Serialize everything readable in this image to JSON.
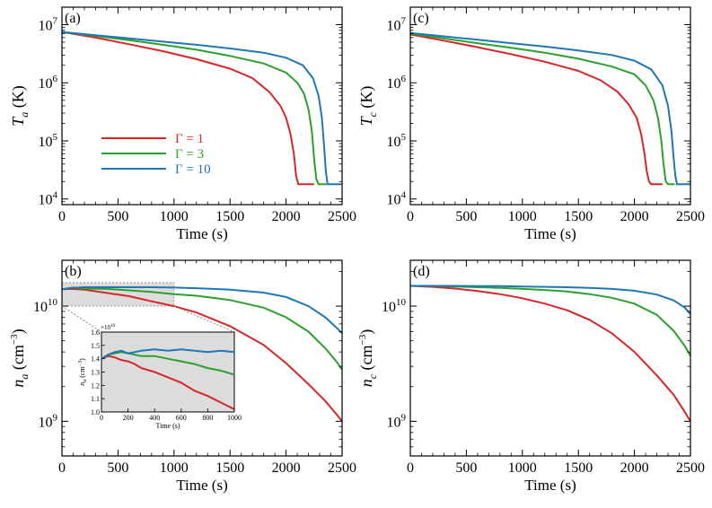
{
  "colors": {
    "gamma1": "#d62728",
    "gamma3": "#2ca02c",
    "gamma10": "#1f77b4",
    "axis": "#000000",
    "inset_bg": "#dcdcdc"
  },
  "legend": [
    {
      "label": "Γ = 1",
      "color": "#d62728"
    },
    {
      "label": "Γ = 3",
      "color": "#2ca02c"
    },
    {
      "label": "Γ = 10",
      "color": "#1f77b4"
    }
  ],
  "chart_data": [
    {
      "id": "a",
      "type": "line",
      "panel_label": "(a)",
      "xlabel": "Time (s)",
      "ylabel": {
        "main": "T",
        "sub": "a",
        "unit": " (K)"
      },
      "xlim": [
        0,
        2500
      ],
      "ylim": [
        8000,
        20000000
      ],
      "yscale": "log",
      "x_ticks": [
        "0",
        "500",
        "1000",
        "1500",
        "2000",
        "2500"
      ],
      "y_ticks": [
        {
          "v": 10000,
          "m": "10",
          "e": "4"
        },
        {
          "v": 100000,
          "m": "10",
          "e": "5"
        },
        {
          "v": 1000000,
          "m": "10",
          "e": "6"
        },
        {
          "v": 10000000,
          "m": "10",
          "e": "7"
        }
      ],
      "series": [
        {
          "name": "Γ = 1",
          "color": "#d62728",
          "x": [
            0,
            300,
            600,
            900,
            1200,
            1500,
            1700,
            1850,
            1950,
            2000,
            2040,
            2070,
            2090,
            2110,
            2140,
            2250
          ],
          "y": [
            7500000,
            6000000,
            4600000,
            3500000,
            2550000,
            1750000,
            1200000,
            700000,
            400000,
            250000,
            130000,
            60000,
            25000,
            18000,
            18000,
            18000
          ]
        },
        {
          "name": "Γ = 3",
          "color": "#2ca02c",
          "x": [
            0,
            300,
            600,
            900,
            1200,
            1500,
            1800,
            2000,
            2100,
            2160,
            2200,
            2230,
            2250,
            2270,
            2290,
            2360
          ],
          "y": [
            7500000,
            6400000,
            5400000,
            4500000,
            3700000,
            2900000,
            2150000,
            1500000,
            1000000,
            650000,
            350000,
            150000,
            50000,
            22000,
            18000,
            18000
          ]
        },
        {
          "name": "Γ = 10",
          "color": "#1f77b4",
          "x": [
            0,
            300,
            600,
            900,
            1200,
            1500,
            1800,
            2000,
            2150,
            2240,
            2290,
            2320,
            2340,
            2355,
            2370,
            2500
          ],
          "y": [
            7500000,
            6600000,
            5800000,
            5100000,
            4500000,
            3900000,
            3300000,
            2700000,
            2000000,
            1200000,
            600000,
            250000,
            80000,
            30000,
            18000,
            18000
          ]
        }
      ]
    },
    {
      "id": "c",
      "type": "line",
      "panel_label": "(c)",
      "xlabel": "Time (s)",
      "ylabel": {
        "main": "T",
        "sub": "c",
        "unit": " (K)"
      },
      "xlim": [
        0,
        2500
      ],
      "ylim": [
        8000,
        20000000
      ],
      "yscale": "log",
      "x_ticks": [
        "0",
        "500",
        "1000",
        "1500",
        "2000",
        "2500"
      ],
      "y_ticks": [
        {
          "v": 10000,
          "m": "10",
          "e": "4"
        },
        {
          "v": 100000,
          "m": "10",
          "e": "5"
        },
        {
          "v": 1000000,
          "m": "10",
          "e": "6"
        },
        {
          "v": 10000000,
          "m": "10",
          "e": "7"
        }
      ],
      "series": [
        {
          "name": "Γ = 1",
          "color": "#d62728",
          "x": [
            0,
            300,
            600,
            900,
            1200,
            1500,
            1700,
            1850,
            1950,
            2020,
            2060,
            2090,
            2110,
            2130,
            2150,
            2250
          ],
          "y": [
            6800000,
            5300000,
            4100000,
            3100000,
            2300000,
            1600000,
            1100000,
            700000,
            420000,
            250000,
            130000,
            60000,
            30000,
            20000,
            18000,
            18000
          ]
        },
        {
          "name": "Γ = 3",
          "color": "#2ca02c",
          "x": [
            0,
            300,
            600,
            900,
            1200,
            1500,
            1800,
            2000,
            2100,
            2170,
            2210,
            2240,
            2260,
            2280,
            2300,
            2360
          ],
          "y": [
            7000000,
            5800000,
            4800000,
            4000000,
            3300000,
            2600000,
            1900000,
            1400000,
            900000,
            500000,
            250000,
            100000,
            40000,
            20000,
            18000,
            18000
          ]
        },
        {
          "name": "Γ = 10",
          "color": "#1f77b4",
          "x": [
            0,
            300,
            600,
            900,
            1200,
            1500,
            1800,
            2000,
            2150,
            2250,
            2300,
            2330,
            2350,
            2365,
            2380,
            2500
          ],
          "y": [
            7200000,
            6300000,
            5500000,
            4800000,
            4200000,
            3600000,
            3000000,
            2400000,
            1700000,
            900000,
            400000,
            150000,
            50000,
            25000,
            18000,
            18000
          ]
        }
      ]
    },
    {
      "id": "b",
      "type": "line",
      "panel_label": "(b)",
      "xlabel": "Time (s)",
      "ylabel": {
        "main": "n",
        "sub": "a",
        "unit": " (cm",
        "unit_exp": "−3",
        "unit_end": ")"
      },
      "xlim": [
        0,
        2500
      ],
      "ylim": [
        500000000,
        25000000000
      ],
      "yscale": "log",
      "x_ticks": [
        "0",
        "500",
        "1000",
        "1500",
        "2000",
        "2500"
      ],
      "y_ticks": [
        {
          "v": 1000000000,
          "m": "10",
          "e": "9"
        },
        {
          "v": 10000000000,
          "m": "10",
          "e": "10"
        }
      ],
      "series": [
        {
          "name": "Γ = 1",
          "color": "#d62728",
          "x": [
            0,
            100,
            200,
            400,
            600,
            800,
            1000,
            1200,
            1500,
            1800,
            2000,
            2200,
            2350,
            2450,
            2500
          ],
          "y": [
            14000000000,
            14100000000,
            13900000000,
            13000000000,
            12200000000,
            11000000000,
            10000000000,
            8800000000,
            6700000000,
            4600000000,
            3200000000,
            2100000000,
            1500000000,
            1150000000,
            1000000000
          ]
        },
        {
          "name": "Γ = 3",
          "color": "#2ca02c",
          "x": [
            0,
            100,
            200,
            400,
            600,
            800,
            1000,
            1200,
            1500,
            1800,
            2000,
            2200,
            2350,
            2450,
            2500
          ],
          "y": [
            14000000000,
            14500000000,
            14200000000,
            14100000000,
            13700000000,
            13300000000,
            12700000000,
            12300000000,
            11300000000,
            9700000000,
            8000000000,
            6000000000,
            4300000000,
            3300000000,
            2800000000
          ]
        },
        {
          "name": "Γ = 10",
          "color": "#1f77b4",
          "x": [
            0,
            100,
            200,
            400,
            600,
            800,
            1000,
            1200,
            1500,
            1800,
            2000,
            2200,
            2350,
            2450,
            2500
          ],
          "y": [
            14000000000,
            14400000000,
            14600000000,
            14600000000,
            14600000000,
            14600000000,
            14500000000,
            14300000000,
            13900000000,
            13100000000,
            12000000000,
            10000000000,
            8000000000,
            6500000000,
            5800000000
          ]
        }
      ],
      "inset": {
        "xlabel": "Time (s)",
        "ylabel": "n",
        "ylabel_sub": "a",
        "ylabel_unit": " (cm",
        "ylabel_unit_exp": "−3",
        "ylabel_unit_end": ")",
        "multiplier": "×10",
        "multiplier_exp": "10",
        "xlim": [
          0,
          1000
        ],
        "ylim": [
          1.0,
          1.6
        ],
        "x_ticks": [
          "0",
          "200",
          "400",
          "600",
          "800",
          "1000"
        ],
        "y_ticks": [
          "1.0",
          "1.1",
          "1.2",
          "1.3",
          "1.4",
          "1.5",
          "1.6"
        ],
        "series": [
          {
            "name": "Γ = 1",
            "color": "#d62728",
            "x": [
              0,
              50,
              100,
              150,
              200,
              250,
              300,
              400,
              500,
              600,
              700,
              800,
              900,
              1000
            ],
            "y": [
              1.4,
              1.42,
              1.41,
              1.39,
              1.38,
              1.36,
              1.33,
              1.3,
              1.26,
              1.22,
              1.16,
              1.12,
              1.07,
              1.02
            ]
          },
          {
            "name": "Γ = 3",
            "color": "#2ca02c",
            "x": [
              0,
              50,
              100,
              150,
              200,
              250,
              300,
              400,
              500,
              600,
              700,
              800,
              900,
              1000
            ],
            "y": [
              1.4,
              1.43,
              1.44,
              1.45,
              1.44,
              1.43,
              1.42,
              1.42,
              1.4,
              1.38,
              1.36,
              1.33,
              1.31,
              1.28
            ]
          },
          {
            "name": "Γ = 10",
            "color": "#1f77b4",
            "x": [
              0,
              50,
              100,
              150,
              200,
              250,
              300,
              400,
              500,
              600,
              700,
              800,
              900,
              1000
            ],
            "y": [
              1.4,
              1.43,
              1.45,
              1.46,
              1.44,
              1.45,
              1.46,
              1.47,
              1.46,
              1.47,
              1.46,
              1.45,
              1.46,
              1.45
            ]
          }
        ]
      }
    },
    {
      "id": "d",
      "type": "line",
      "panel_label": "(d)",
      "xlabel": "Time (s)",
      "ylabel": {
        "main": "n",
        "sub": "c",
        "unit": " (cm",
        "unit_exp": "−3",
        "unit_end": ")"
      },
      "xlim": [
        0,
        2500
      ],
      "ylim": [
        500000000,
        25000000000
      ],
      "yscale": "log",
      "x_ticks": [
        "0",
        "500",
        "1000",
        "1500",
        "2000",
        "2500"
      ],
      "y_ticks": [
        {
          "v": 1000000000,
          "m": "10",
          "e": "9"
        },
        {
          "v": 10000000000,
          "m": "10",
          "e": "10"
        }
      ],
      "series": [
        {
          "name": "Γ = 1",
          "color": "#d62728",
          "x": [
            0,
            200,
            400,
            600,
            800,
            1000,
            1200,
            1400,
            1600,
            1800,
            2000,
            2200,
            2350,
            2450,
            2500
          ],
          "y": [
            15000000000,
            14700000000,
            14200000000,
            13500000000,
            12700000000,
            11700000000,
            10500000000,
            9200000000,
            7600000000,
            5800000000,
            4000000000,
            2500000000,
            1700000000,
            1200000000,
            1000000000
          ]
        },
        {
          "name": "Γ = 3",
          "color": "#2ca02c",
          "x": [
            0,
            200,
            400,
            600,
            800,
            1000,
            1200,
            1400,
            1600,
            1800,
            2000,
            2200,
            2350,
            2450,
            2500
          ],
          "y": [
            15000000000,
            14900000000,
            14800000000,
            14600000000,
            14400000000,
            14100000000,
            13800000000,
            13400000000,
            12700000000,
            11800000000,
            10500000000,
            8400000000,
            6100000000,
            4500000000,
            3700000000
          ]
        },
        {
          "name": "Γ = 10",
          "color": "#1f77b4",
          "x": [
            0,
            200,
            400,
            600,
            800,
            1000,
            1200,
            1400,
            1600,
            1800,
            2000,
            2200,
            2350,
            2450,
            2500
          ],
          "y": [
            15000000000,
            15000000000,
            15000000000,
            14900000000,
            14900000000,
            14800000000,
            14700000000,
            14600000000,
            14400000000,
            14100000000,
            13600000000,
            12600000000,
            11200000000,
            9700000000,
            8500000000
          ]
        }
      ]
    }
  ]
}
